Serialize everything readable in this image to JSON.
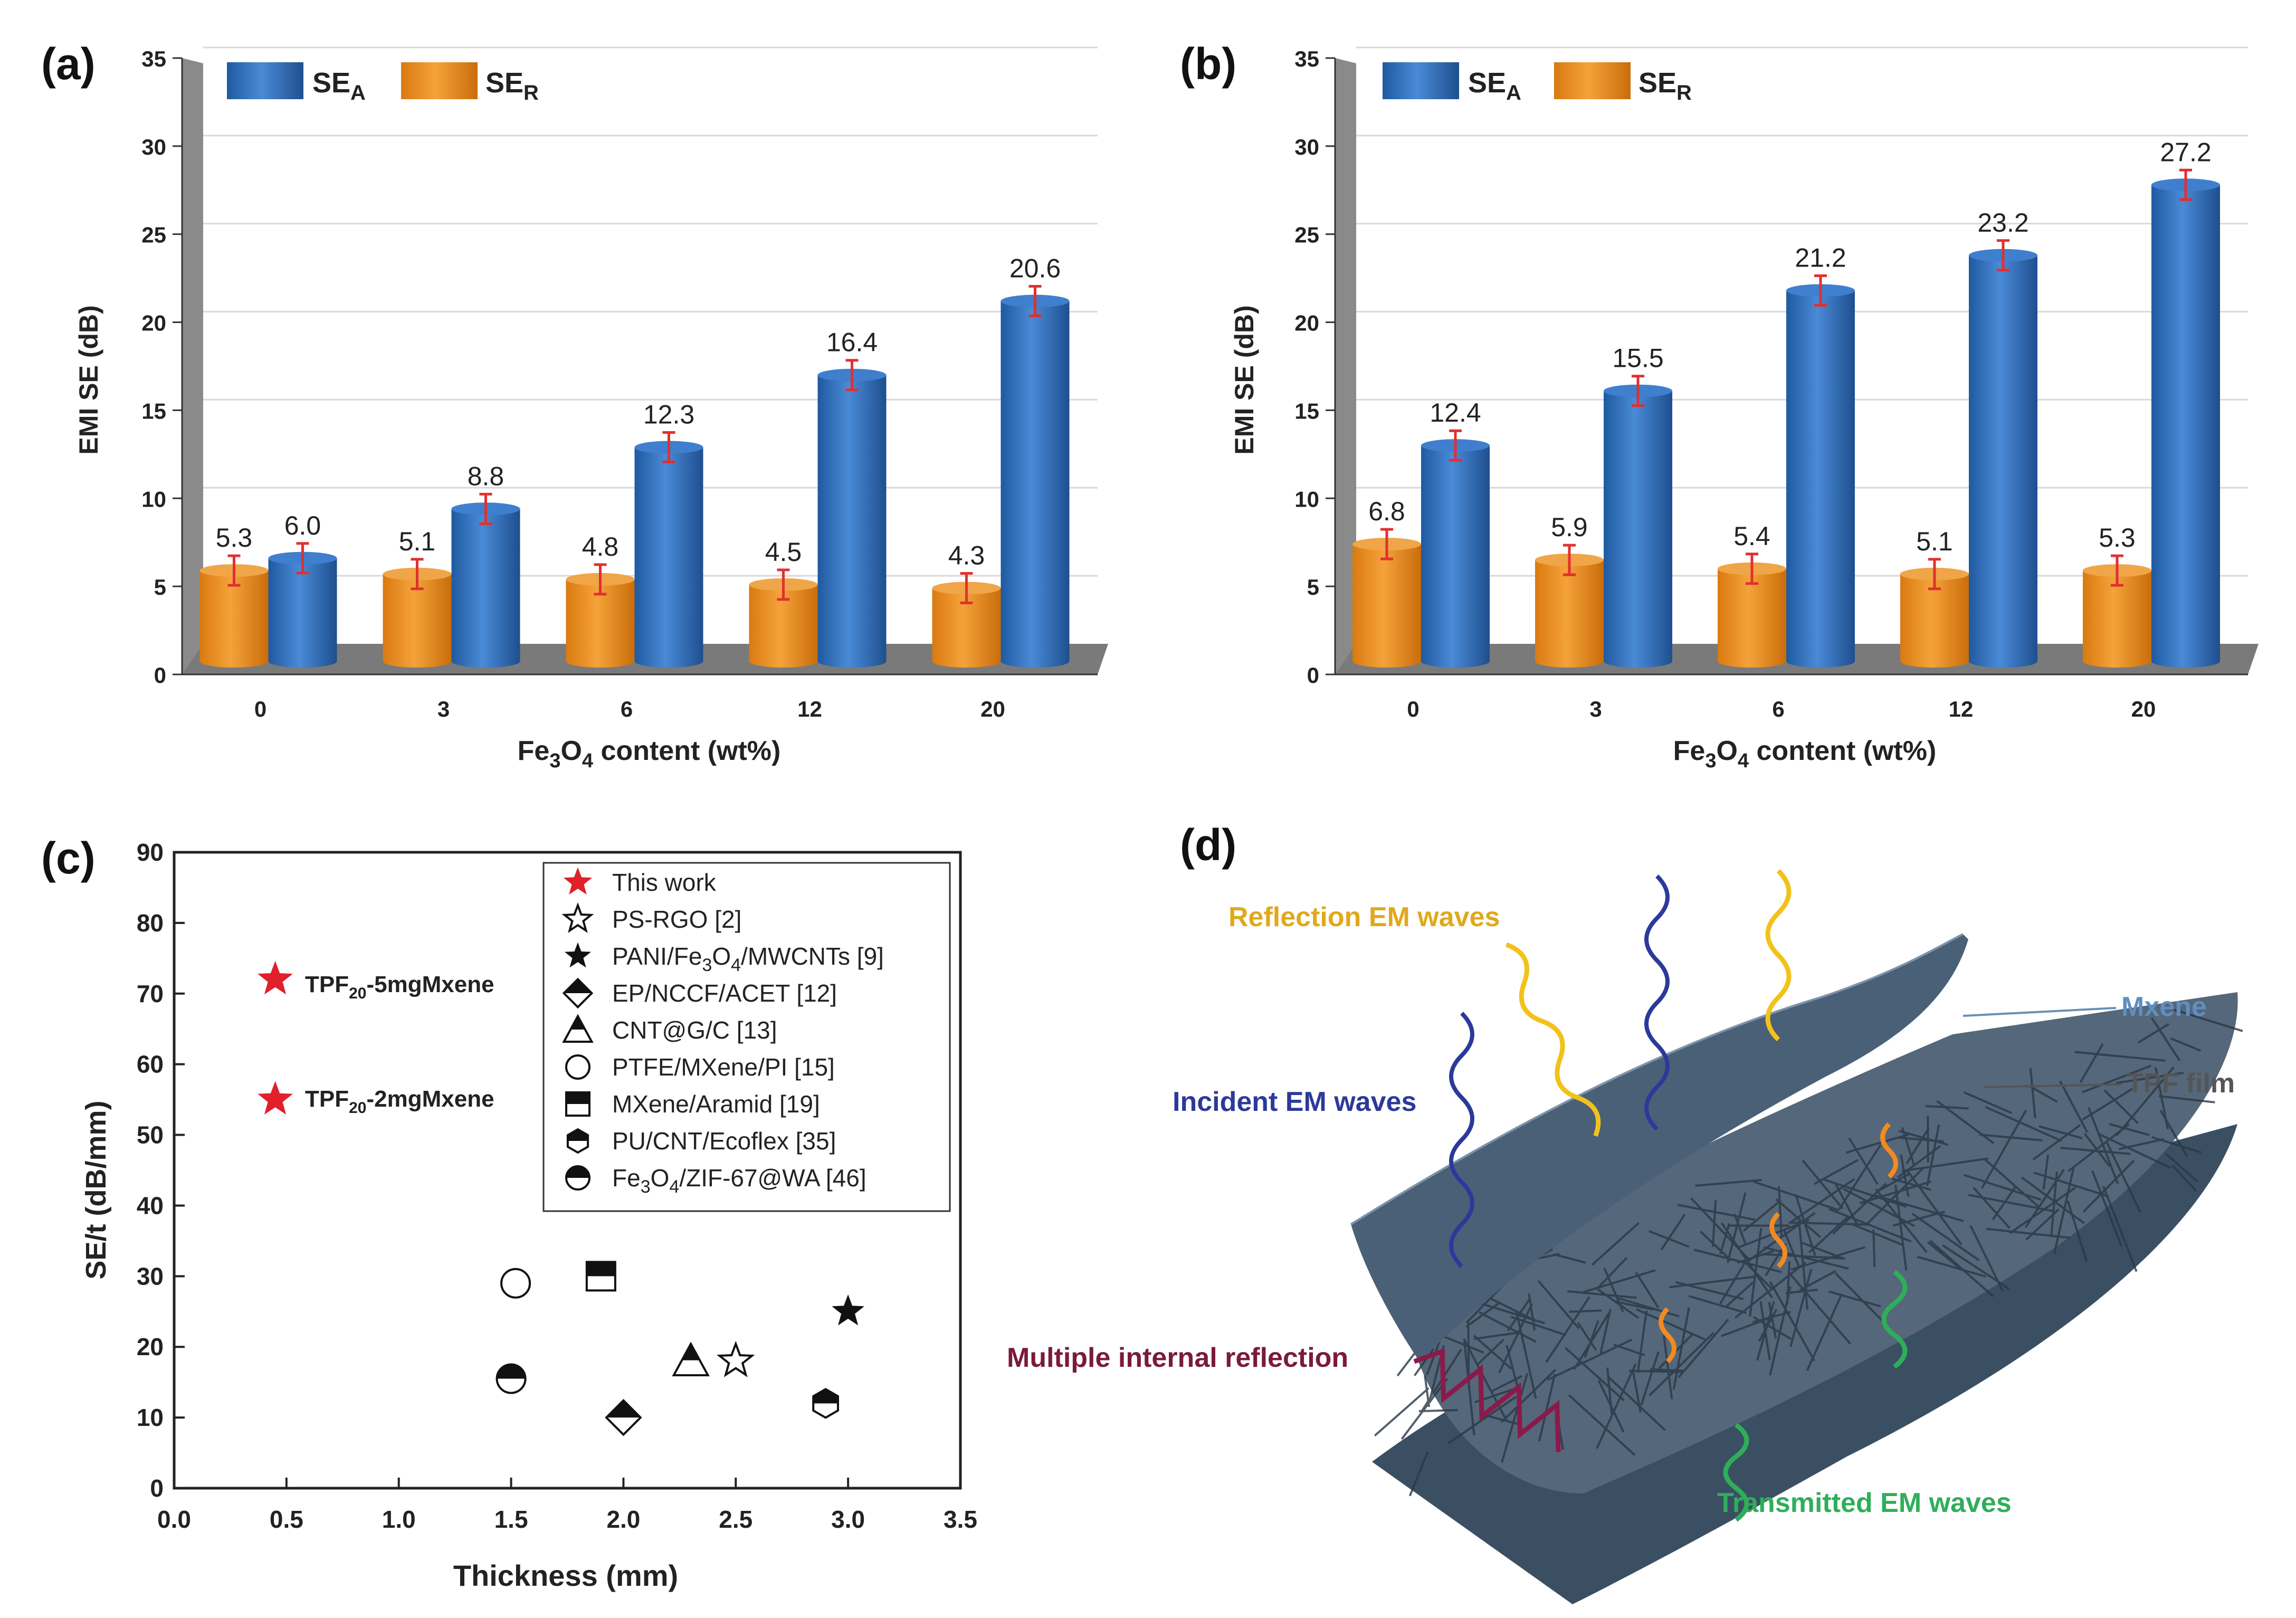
{
  "panel_labels": {
    "a": "(a)",
    "b": "(b)",
    "c": "(c)",
    "d": "(d)"
  },
  "colors": {
    "se_a": "#2f6db6",
    "se_r": "#e68a1f",
    "err": "#e03030",
    "floor": "#6e6e6e",
    "star_red": "#e0202a"
  },
  "chart_data": [
    {
      "id": "a",
      "type": "bar",
      "xlabel_main": "Fe",
      "xlabel_sub1": "3",
      "xlabel_mid": "O",
      "xlabel_sub2": "4",
      "xlabel_tail": " content (wt%)",
      "ylabel": "EMI SE (dB)",
      "ylim": [
        0,
        35
      ],
      "yticks": [
        "0",
        "5",
        "10",
        "15",
        "20",
        "25",
        "30",
        "35"
      ],
      "categories": [
        "0",
        "3",
        "6",
        "12",
        "20"
      ],
      "series": [
        {
          "name": "SE",
          "sub": "R",
          "values": [
            5.3,
            5.1,
            4.8,
            4.5,
            4.3
          ],
          "labels": [
            "5.3",
            "5.1",
            "4.8",
            "4.5",
            "4.3"
          ]
        },
        {
          "name": "SE",
          "sub": "A",
          "values": [
            6.0,
            8.8,
            12.3,
            16.4,
            20.6
          ],
          "labels": [
            "6.0",
            "8.8",
            "12.3",
            "16.4",
            "20.6"
          ]
        }
      ]
    },
    {
      "id": "b",
      "type": "bar",
      "xlabel_main": "Fe",
      "xlabel_sub1": "3",
      "xlabel_mid": "O",
      "xlabel_sub2": "4",
      "xlabel_tail": " content (wt%)",
      "ylabel": "EMI SE (dB)",
      "ylim": [
        0,
        35
      ],
      "yticks": [
        "0",
        "5",
        "10",
        "15",
        "20",
        "25",
        "30",
        "35"
      ],
      "categories": [
        "0",
        "3",
        "6",
        "12",
        "20"
      ],
      "series": [
        {
          "name": "SE",
          "sub": "R",
          "values": [
            6.8,
            5.9,
            5.4,
            5.1,
            5.3
          ],
          "labels": [
            "6.8",
            "5.9",
            "5.4",
            "5.1",
            "5.3"
          ]
        },
        {
          "name": "SE",
          "sub": "A",
          "values": [
            12.4,
            15.5,
            21.2,
            23.2,
            27.2
          ],
          "labels": [
            "12.4",
            "15.5",
            "21.2",
            "23.2",
            "27.2"
          ]
        }
      ]
    },
    {
      "id": "c",
      "type": "scatter",
      "xlabel": "Thickness (mm)",
      "ylabel": "SE/t (dB/mm)",
      "xlim": [
        0.0,
        3.5
      ],
      "ylim": [
        0,
        90
      ],
      "xticks": [
        "0.0",
        "0.5",
        "1.0",
        "1.5",
        "2.0",
        "2.5",
        "3.0",
        "3.5"
      ],
      "yticks": [
        "0",
        "10",
        "20",
        "30",
        "40",
        "50",
        "60",
        "70",
        "80",
        "90"
      ],
      "annotations": [
        {
          "text_main": "TPF",
          "text_sub": "20",
          "text_tail": "-5mgMxene"
        },
        {
          "text_main": "TPF",
          "text_sub": "20",
          "text_tail": "-2mgMxene"
        }
      ],
      "series": [
        {
          "name": "This work",
          "marker": "star-red",
          "points": [
            [
              0.45,
              72
            ],
            [
              0.45,
              55
            ]
          ]
        },
        {
          "name": "PS-RGO [2]",
          "marker": "star-open",
          "points": [
            [
              2.5,
              18
            ]
          ]
        },
        {
          "name": "PANI/Fe3O4/MWCNTs [9]",
          "marker": "star-filled",
          "points": [
            [
              3.0,
              25
            ]
          ]
        },
        {
          "name": "EP/NCCF/ACET [12]",
          "marker": "diamond-half",
          "points": [
            [
              2.0,
              10
            ]
          ]
        },
        {
          "name": "CNT@G/C [13]",
          "marker": "triangle-half",
          "points": [
            [
              2.3,
              18
            ]
          ]
        },
        {
          "name": "PTFE/MXene/PI [15]",
          "marker": "circle-open",
          "points": [
            [
              1.52,
              29
            ]
          ]
        },
        {
          "name": "MXene/Aramid [19]",
          "marker": "square-half",
          "points": [
            [
              1.9,
              30
            ]
          ]
        },
        {
          "name": "PU/CNT/Ecoflex [35]",
          "marker": "hexagon-half",
          "points": [
            [
              2.9,
              12
            ]
          ]
        },
        {
          "name": "Fe3O4/ZIF-67@WA [46]",
          "marker": "circle-half",
          "points": [
            [
              1.5,
              15.5
            ]
          ]
        }
      ],
      "legend": [
        {
          "main": "This work"
        },
        {
          "main": "PS-RGO [2]"
        },
        {
          "main": "PANI/Fe",
          "s1": "3",
          "m2": "O",
          "s2": "4",
          "tail": "/MWCNTs [9]"
        },
        {
          "main": "EP/NCCF/ACET [12]"
        },
        {
          "main": "CNT@G/C [13]"
        },
        {
          "main": "PTFE/MXene/PI [15]"
        },
        {
          "main": "MXene/Aramid [19]"
        },
        {
          "main": "PU/CNT/Ecoflex [35]"
        },
        {
          "main": "Fe",
          "s1": "3",
          "m2": "O",
          "s2": "4",
          "tail": "/ZIF-67@WA [46]"
        }
      ]
    }
  ],
  "diagram_d": {
    "reflection": "Reflection EM waves",
    "incident": "Incident EM waves",
    "multiple": "Multiple internal reflection",
    "transmitted": "Transmitted EM waves",
    "mxene": "Mxene",
    "tpf": "TPF film"
  }
}
